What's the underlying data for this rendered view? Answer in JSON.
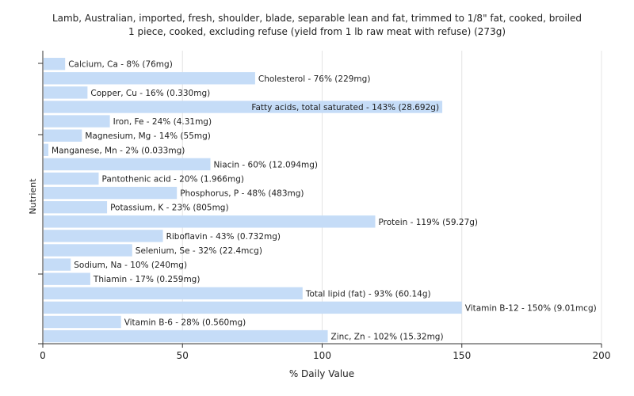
{
  "chart_data": {
    "type": "bar",
    "orientation": "horizontal",
    "title_lines": [
      "Lamb, Australian, imported, fresh, shoulder, blade, separable lean and fat, trimmed to 1/8\" fat, cooked, broiled",
      "1 piece, cooked, excluding refuse (yield from 1 lb raw meat with refuse) (273g)"
    ],
    "xlabel": "% Daily Value",
    "ylabel": "Nutrient",
    "xlim": [
      0,
      200
    ],
    "xticks": [
      0,
      50,
      100,
      150,
      200
    ],
    "grid": true,
    "bar_color": "#c5dcf7",
    "categories": [
      "Calcium, Ca",
      "Cholesterol",
      "Copper, Cu",
      "Fatty acids, total saturated",
      "Iron, Fe",
      "Magnesium, Mg",
      "Manganese, Mn",
      "Niacin",
      "Pantothenic acid",
      "Phosphorus, P",
      "Potassium, K",
      "Protein",
      "Riboflavin",
      "Selenium, Se",
      "Sodium, Na",
      "Thiamin",
      "Total lipid (fat)",
      "Vitamin B-12",
      "Vitamin B-6",
      "Zinc, Zn"
    ],
    "values": [
      8,
      76,
      16,
      143,
      24,
      14,
      2,
      60,
      20,
      48,
      23,
      119,
      43,
      32,
      10,
      17,
      93,
      150,
      28,
      102
    ],
    "labels": [
      "Calcium, Ca - 8% (76mg)",
      "Cholesterol - 76% (229mg)",
      "Copper, Cu - 16% (0.330mg)",
      "Fatty acids, total saturated - 143% (28.692g)",
      "Iron, Fe - 24% (4.31mg)",
      "Magnesium, Mg - 14% (55mg)",
      "Manganese, Mn - 2% (0.033mg)",
      "Niacin - 60% (12.094mg)",
      "Pantothenic acid - 20% (1.966mg)",
      "Phosphorus, P - 48% (483mg)",
      "Potassium, K - 23% (805mg)",
      "Protein - 119% (59.27g)",
      "Riboflavin - 43% (0.732mg)",
      "Selenium, Se - 32% (22.4mcg)",
      "Sodium, Na - 10% (240mg)",
      "Thiamin - 17% (0.259mg)",
      "Total lipid (fat) - 93% (60.14g)",
      "Vitamin B-12 - 150% (9.01mcg)",
      "Vitamin B-6 - 28% (0.560mg)",
      "Zinc, Zn - 102% (15.32mg)"
    ],
    "inside_label_indices": [
      3
    ]
  }
}
